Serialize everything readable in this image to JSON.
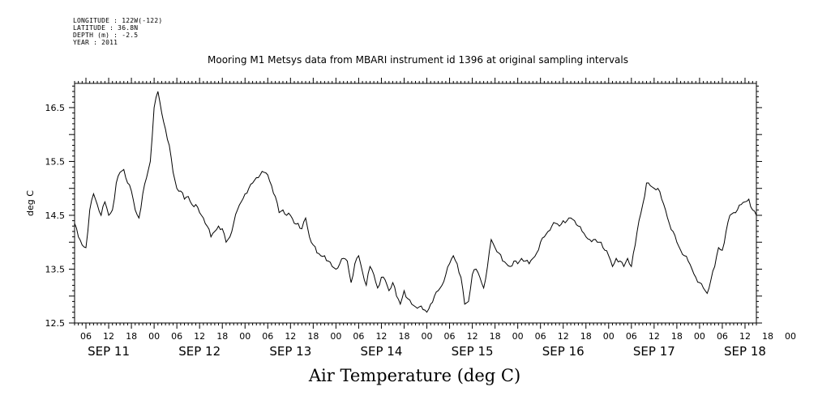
{
  "meta": {
    "longitude": "LONGITUDE : 122W(-122)",
    "latitude": "LATITUDE : 36.8N",
    "depth": "DEPTH (m) : -2.5",
    "year": "YEAR : 2011"
  },
  "chart_data": {
    "type": "line",
    "title": "Mooring M1 Metsys data from MBARI instrument id 1396 at original sampling intervals",
    "xlabel": "Air Temperature (deg C)",
    "ylabel": "deg C",
    "ylim": [
      12.5,
      16.95
    ],
    "yticks": [
      "12.5",
      "13.5",
      "14.5",
      "15.5",
      "16.5"
    ],
    "xlim_hours": [
      3,
      183
    ],
    "hour_ticks": [
      "06",
      "12",
      "18",
      "00",
      "06",
      "12",
      "18",
      "00",
      "06",
      "12",
      "18",
      "00",
      "06",
      "12",
      "18",
      "00",
      "06",
      "12",
      "18",
      "00",
      "06",
      "12",
      "18",
      "00",
      "06",
      "12",
      "18",
      "00",
      "06",
      "12",
      "18",
      "00"
    ],
    "day_labels": [
      "SEP 11",
      "SEP 12",
      "SEP 13",
      "SEP 14",
      "SEP 15",
      "SEP 16",
      "SEP 17",
      "SEP 18"
    ],
    "grid": false,
    "series": [
      {
        "x": [
          3,
          4,
          5,
          6,
          7,
          8,
          9,
          10,
          11,
          12,
          13,
          14,
          15,
          16,
          17,
          18,
          19,
          20,
          21,
          22,
          23,
          24,
          25,
          26,
          27,
          28,
          29,
          30,
          31,
          32,
          33,
          34,
          35,
          36,
          37,
          38,
          39,
          40,
          41,
          42,
          43,
          44,
          45,
          46,
          47,
          48,
          49,
          50,
          51,
          52,
          53,
          54,
          55,
          56,
          57,
          58,
          59,
          60,
          61,
          62,
          63,
          64,
          65,
          66,
          67,
          68,
          69,
          70,
          71,
          72,
          73,
          74,
          75,
          76,
          77,
          78,
          79,
          80,
          81,
          82,
          83,
          84,
          85,
          86,
          87,
          88,
          89,
          90,
          91,
          92,
          93,
          94,
          95,
          96,
          97,
          98,
          99,
          100,
          101,
          102,
          103,
          104,
          105,
          106,
          107,
          108,
          109,
          110,
          111,
          112,
          113,
          114,
          115,
          116,
          117,
          118,
          119,
          120,
          121,
          122,
          123,
          124,
          125,
          126,
          127,
          128,
          129,
          130,
          131,
          132,
          133,
          134,
          135,
          136,
          137,
          138,
          139,
          140,
          141,
          142,
          143,
          144,
          145,
          146,
          147,
          148,
          149,
          150,
          151,
          152,
          153,
          154,
          155,
          156,
          157,
          158,
          159,
          160,
          161,
          162,
          163,
          164,
          165,
          166,
          167,
          168,
          169,
          170,
          171,
          172,
          173,
          174,
          175,
          176,
          177,
          178,
          179,
          180,
          181,
          182,
          183
        ],
        "values": [
          14.35,
          14.1,
          13.95,
          13.9,
          14.6,
          14.9,
          14.7,
          14.5,
          14.75,
          14.5,
          14.6,
          15.1,
          15.3,
          15.35,
          15.1,
          14.95,
          14.6,
          14.45,
          14.9,
          15.2,
          15.5,
          16.5,
          16.8,
          16.4,
          16.1,
          15.8,
          15.3,
          15.0,
          14.95,
          14.8,
          14.85,
          14.7,
          14.7,
          14.55,
          14.45,
          14.3,
          14.1,
          14.2,
          14.3,
          14.25,
          14.0,
          14.1,
          14.35,
          14.6,
          14.75,
          14.9,
          15.0,
          15.1,
          15.2,
          15.25,
          15.3,
          15.25,
          15.05,
          14.85,
          14.55,
          14.6,
          14.5,
          14.5,
          14.35,
          14.35,
          14.25,
          14.45,
          14.1,
          13.95,
          13.8,
          13.75,
          13.75,
          13.65,
          13.55,
          13.5,
          13.6,
          13.7,
          13.65,
          13.25,
          13.6,
          13.75,
          13.45,
          13.2,
          13.55,
          13.4,
          13.15,
          13.35,
          13.3,
          13.1,
          13.25,
          13.0,
          12.85,
          13.1,
          12.95,
          12.85,
          12.8,
          12.8,
          12.75,
          12.7,
          12.85,
          13.0,
          13.1,
          13.2,
          13.4,
          13.6,
          13.75,
          13.6,
          13.35,
          12.85,
          12.9,
          13.4,
          13.5,
          13.35,
          13.15,
          13.55,
          14.05,
          13.9,
          13.8,
          13.65,
          13.6,
          13.55,
          13.65,
          13.6,
          13.7,
          13.65,
          13.6,
          13.7,
          13.8,
          14.0,
          14.1,
          14.2,
          14.3,
          14.35,
          14.3,
          14.4,
          14.4,
          14.45,
          14.4,
          14.3,
          14.2,
          14.1,
          14.05,
          14.05,
          14.0,
          14.0,
          13.85,
          13.75,
          13.55,
          13.7,
          13.65,
          13.55,
          13.7,
          13.55,
          13.95,
          14.4,
          14.7,
          15.1,
          15.05,
          15.0,
          15.0,
          14.8,
          14.6,
          14.35,
          14.2,
          14.0,
          13.85,
          13.75,
          13.65,
          13.5,
          13.35,
          13.25,
          13.15,
          13.05,
          13.3,
          13.55,
          13.9,
          13.85,
          14.2,
          14.5,
          14.55,
          14.6,
          14.7,
          14.75,
          14.8,
          14.6,
          14.5
        ]
      }
    ]
  }
}
